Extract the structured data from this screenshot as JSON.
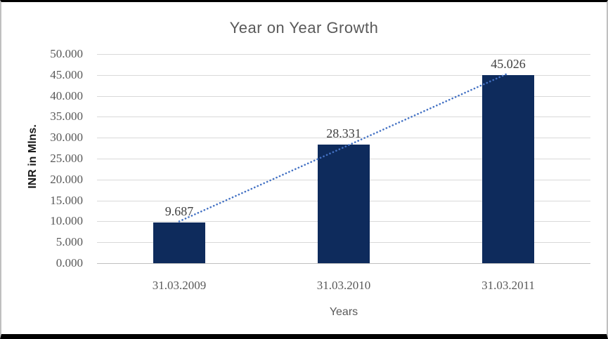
{
  "chart_data": {
    "type": "bar",
    "title": "Year on Year Growth",
    "xlabel": "Years",
    "ylabel": "INR in Mlns.",
    "categories": [
      "31.03.2009",
      "31.03.2010",
      "31.03.2011"
    ],
    "values": [
      9.687,
      28.331,
      45.026
    ],
    "value_labels": [
      "9.687",
      "28.331",
      "45.026"
    ],
    "ylim": [
      0,
      50
    ],
    "yticks": [
      "0.000",
      "5.000",
      "10.000",
      "15.000",
      "20.000",
      "25.000",
      "30.000",
      "35.000",
      "40.000",
      "45.000",
      "50.000"
    ],
    "grid": true,
    "legend": "none",
    "colors": {
      "bar": "#0e2b5c",
      "trendline": "#4472c4",
      "gridline": "#d9d9d9",
      "axis_text": "#595959",
      "data_label": "#3f3f3f",
      "title_text": "#595959"
    },
    "trendline": {
      "type": "linear",
      "style": "dotted",
      "start_value": 10.0,
      "end_value": 45.4
    }
  }
}
